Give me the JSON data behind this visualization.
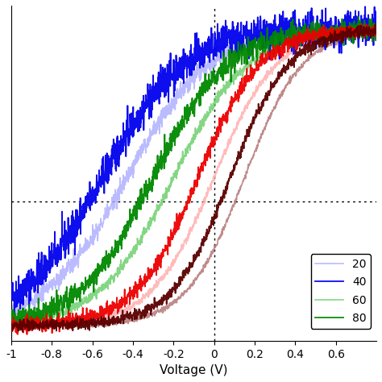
{
  "title": "",
  "xlabel": "Voltage (V)",
  "ylabel": "",
  "xlim": [
    -1.0,
    0.8
  ],
  "x_ticks": [
    -1.0,
    -0.8,
    -0.6,
    -0.4,
    -0.2,
    0.0,
    0.2,
    0.4,
    0.6
  ],
  "legend_labels": [
    "20",
    "40",
    "60",
    "80"
  ],
  "line_colors": [
    "#0000ee",
    "#008800",
    "#ee0000",
    "#5a0000"
  ],
  "faded_colors": [
    "#aaaaff",
    "#66cc66",
    "#ffaaaa",
    "#b07070"
  ],
  "seed": 42,
  "figsize": [
    4.74,
    4.74
  ],
  "dpi": 100,
  "curve_params": [
    {
      "v_thresh": -0.55,
      "steepness": 5.0,
      "noise": 0.03,
      "hyst": 0.12
    },
    {
      "v_thresh": -0.3,
      "steepness": 5.5,
      "noise": 0.018,
      "hyst": 0.1
    },
    {
      "v_thresh": -0.08,
      "steepness": 6.5,
      "noise": 0.013,
      "hyst": 0.08
    },
    {
      "v_thresh": 0.08,
      "steepness": 7.0,
      "noise": 0.009,
      "hyst": 0.07
    }
  ],
  "hline_y": 0.42,
  "ylim": [
    -0.05,
    1.08
  ]
}
